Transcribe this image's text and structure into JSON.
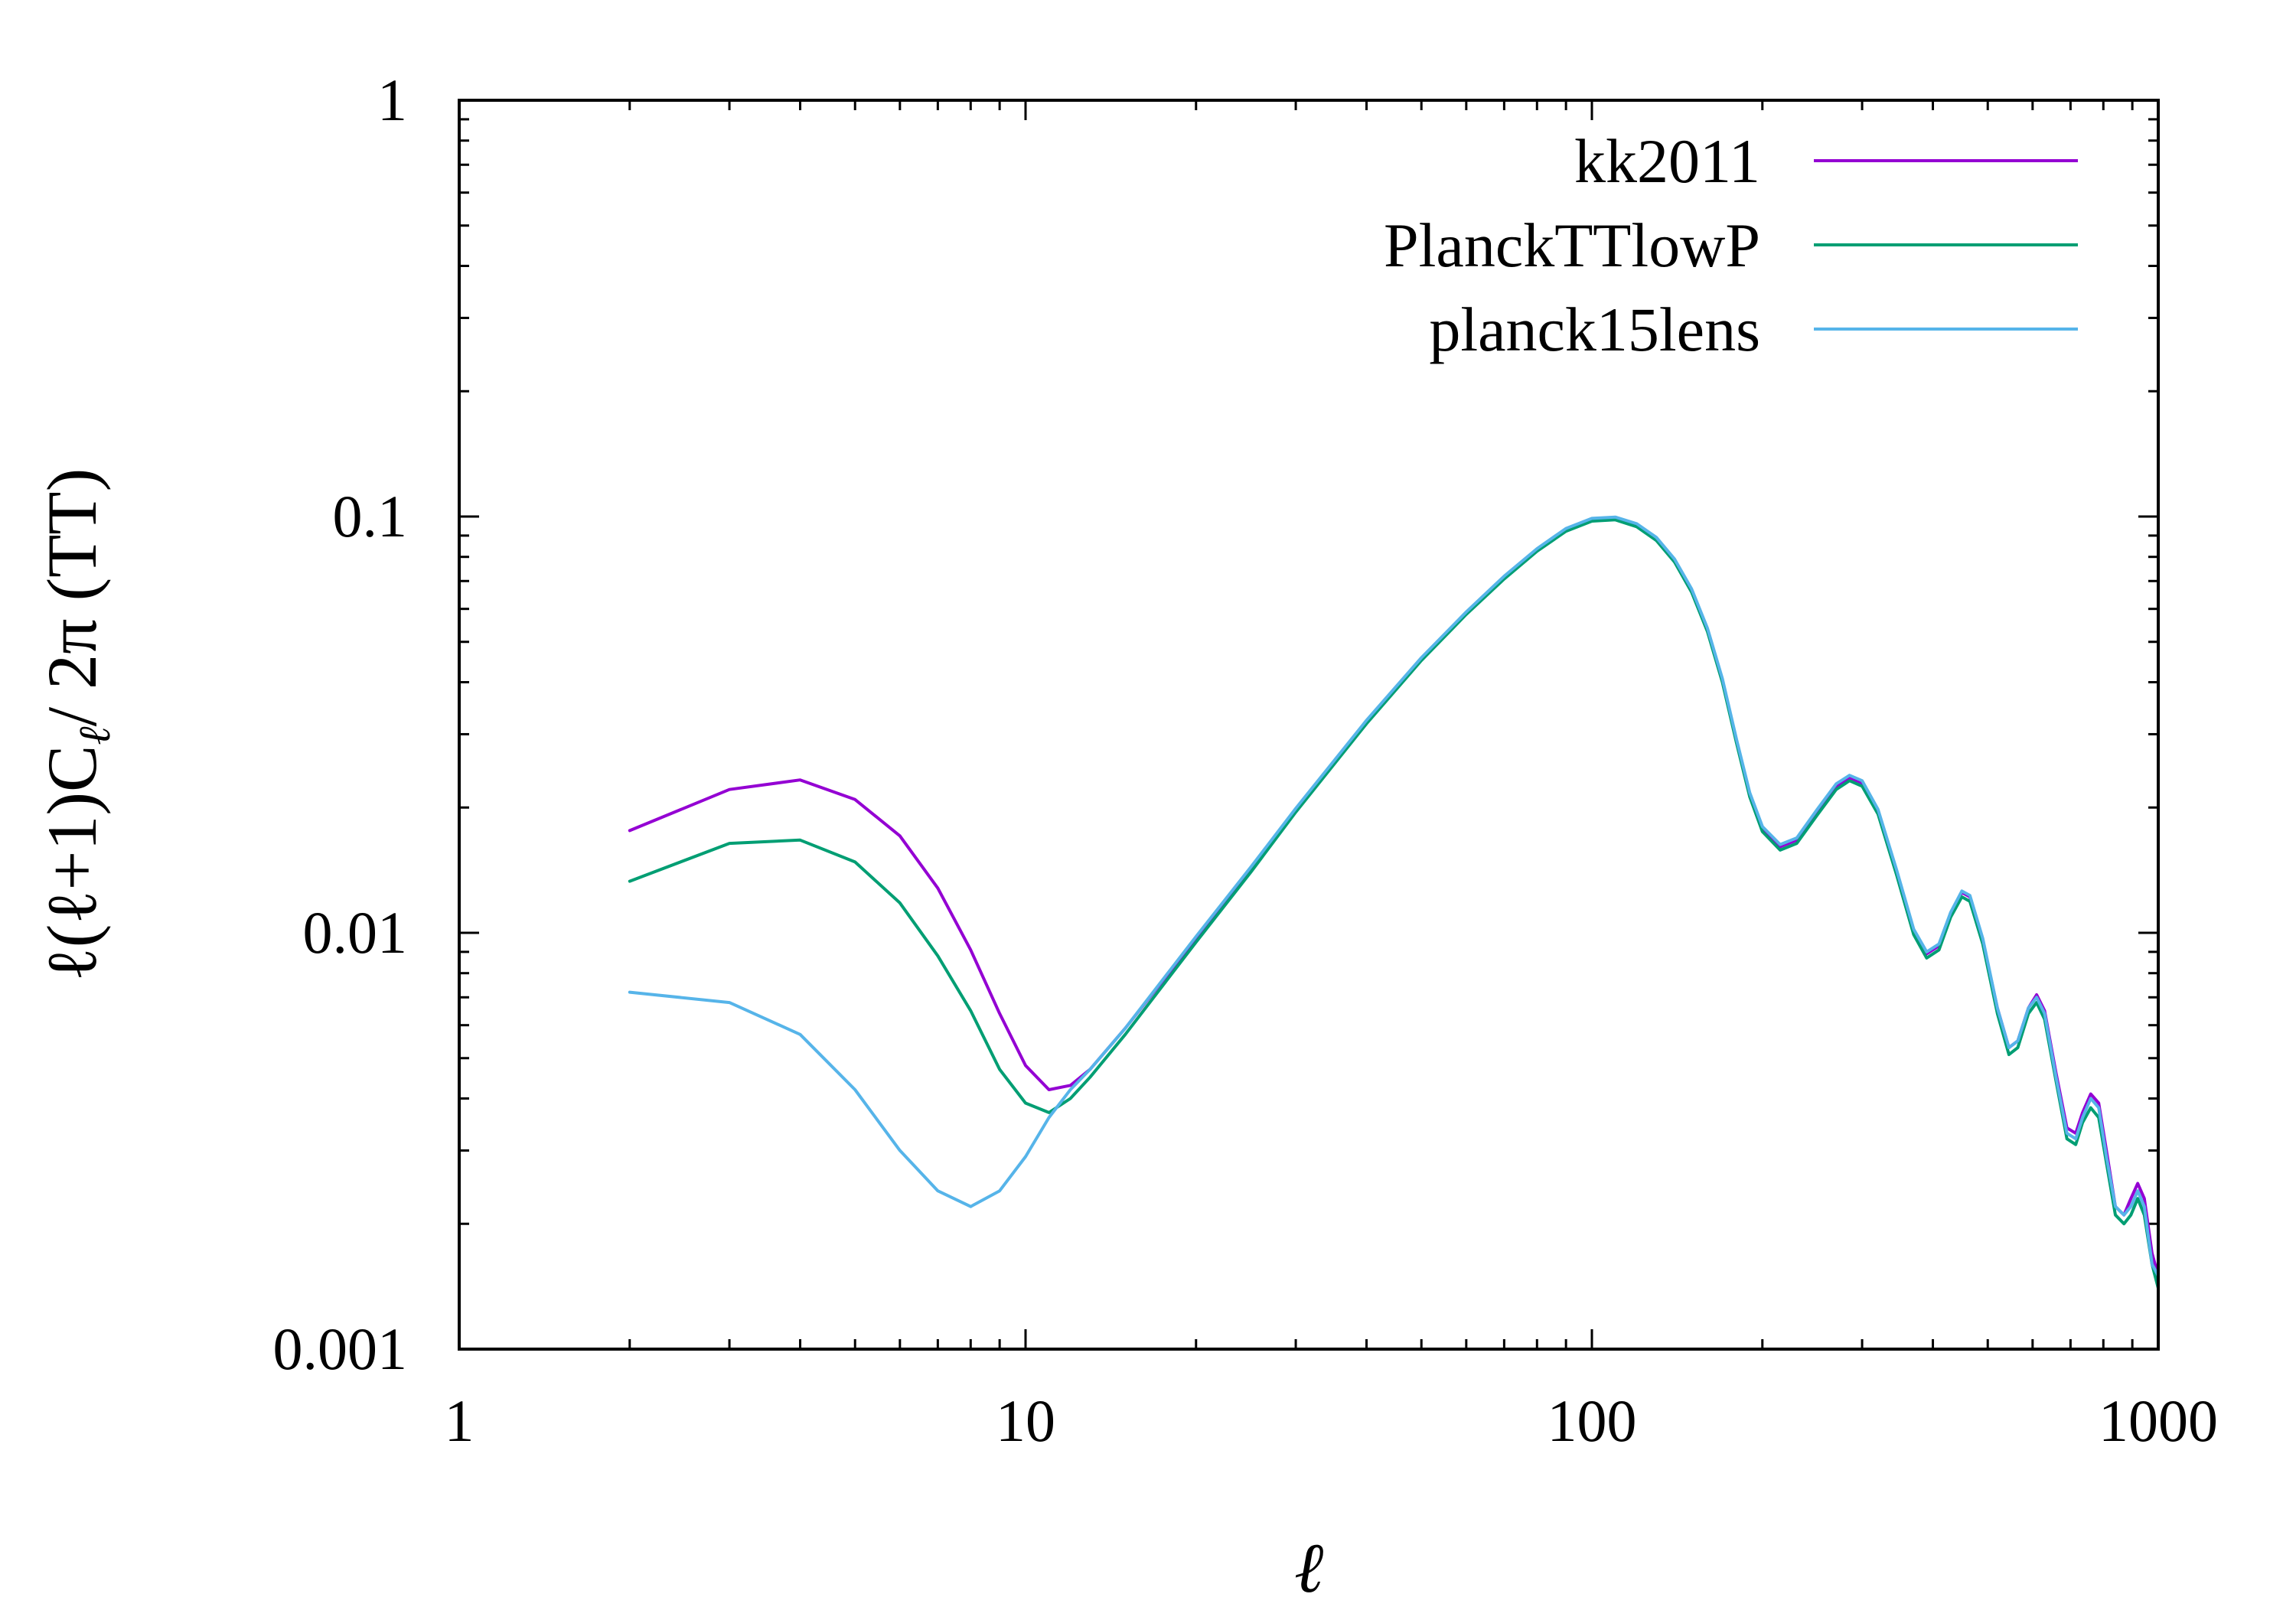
{
  "chart_data": {
    "type": "line",
    "xlabel": "ℓ",
    "ylabel": "ℓ(ℓ+1)Cℓ/ 2π (TT)",
    "ylabel_parts": [
      "ℓ(ℓ+1)C",
      "ℓ",
      "/ 2π (TT)"
    ],
    "xscale": "log",
    "yscale": "log",
    "xlim": [
      1,
      1000
    ],
    "ylim": [
      0.001,
      1
    ],
    "x_ticks": [
      {
        "value": 1,
        "label": "1"
      },
      {
        "value": 10,
        "label": "10"
      },
      {
        "value": 100,
        "label": "100"
      },
      {
        "value": 1000,
        "label": "1000"
      }
    ],
    "y_ticks": [
      {
        "value": 0.001,
        "label": "0.001"
      },
      {
        "value": 0.01,
        "label": "0.01"
      },
      {
        "value": 0.1,
        "label": "0.1"
      },
      {
        "value": 1,
        "label": "1"
      }
    ],
    "grid": false,
    "legend_position": "top-right",
    "series": [
      {
        "name": "kk2011",
        "color": "#9400d3",
        "points": [
          [
            2,
            0.0176
          ],
          [
            3,
            0.0221
          ],
          [
            4,
            0.0233
          ],
          [
            5,
            0.0209
          ],
          [
            6,
            0.0171
          ],
          [
            7,
            0.0128
          ],
          [
            8,
            0.0091
          ],
          [
            9,
            0.0064
          ],
          [
            10,
            0.0048
          ],
          [
            11,
            0.0042
          ],
          [
            12,
            0.0043
          ],
          [
            13,
            0.0047
          ],
          [
            15,
            0.0059
          ],
          [
            20,
            0.0097
          ],
          [
            25,
            0.0143
          ],
          [
            30,
            0.0198
          ],
          [
            40,
            0.0322
          ],
          [
            50,
            0.0456
          ],
          [
            60,
            0.0588
          ],
          [
            70,
            0.0716
          ],
          [
            80,
            0.0834
          ],
          [
            90,
            0.0932
          ],
          [
            100,
            0.0985
          ],
          [
            110,
            0.0992
          ],
          [
            120,
            0.0955
          ],
          [
            130,
            0.0885
          ],
          [
            140,
            0.0785
          ],
          [
            150,
            0.0665
          ],
          [
            160,
            0.0535
          ],
          [
            170,
            0.0405
          ],
          [
            180,
            0.029
          ],
          [
            190,
            0.0215
          ],
          [
            200,
            0.0178
          ],
          [
            215,
            0.0161
          ],
          [
            230,
            0.0167
          ],
          [
            250,
            0.0195
          ],
          [
            270,
            0.0225
          ],
          [
            285,
            0.0236
          ],
          [
            300,
            0.0229
          ],
          [
            320,
            0.0196
          ],
          [
            345,
            0.0141
          ],
          [
            370,
            0.0101
          ],
          [
            390,
            0.0089
          ],
          [
            410,
            0.0093
          ],
          [
            430,
            0.0111
          ],
          [
            450,
            0.0125
          ],
          [
            465,
            0.0122
          ],
          [
            490,
            0.0096
          ],
          [
            520,
            0.0066
          ],
          [
            545,
            0.0053
          ],
          [
            565,
            0.0055
          ],
          [
            590,
            0.0066
          ],
          [
            610,
            0.0071
          ],
          [
            630,
            0.0065
          ],
          [
            660,
            0.0046
          ],
          [
            690,
            0.0034
          ],
          [
            715,
            0.0033
          ],
          [
            735,
            0.0037
          ],
          [
            760,
            0.0041
          ],
          [
            785,
            0.0039
          ],
          [
            810,
            0.003
          ],
          [
            840,
            0.0022
          ],
          [
            870,
            0.0021
          ],
          [
            895,
            0.0023
          ],
          [
            920,
            0.0025
          ],
          [
            945,
            0.0023
          ],
          [
            975,
            0.0017
          ],
          [
            1000,
            0.0015
          ]
        ]
      },
      {
        "name": "PlanckTTlowP",
        "color": "#009e73",
        "points": [
          [
            2,
            0.0133
          ],
          [
            3,
            0.0164
          ],
          [
            4,
            0.0167
          ],
          [
            5,
            0.0148
          ],
          [
            6,
            0.0118
          ],
          [
            7,
            0.0088
          ],
          [
            8,
            0.0065
          ],
          [
            9,
            0.0047
          ],
          [
            10,
            0.0039
          ],
          [
            11,
            0.0037
          ],
          [
            12,
            0.004
          ],
          [
            13,
            0.0045
          ],
          [
            15,
            0.0057
          ],
          [
            20,
            0.0095
          ],
          [
            25,
            0.014
          ],
          [
            30,
            0.0195
          ],
          [
            40,
            0.0318
          ],
          [
            50,
            0.0451
          ],
          [
            60,
            0.0582
          ],
          [
            70,
            0.0708
          ],
          [
            80,
            0.0825
          ],
          [
            90,
            0.0922
          ],
          [
            100,
            0.0975
          ],
          [
            110,
            0.0982
          ],
          [
            120,
            0.0945
          ],
          [
            130,
            0.0876
          ],
          [
            140,
            0.0777
          ],
          [
            150,
            0.0658
          ],
          [
            160,
            0.0529
          ],
          [
            170,
            0.04
          ],
          [
            180,
            0.0286
          ],
          [
            190,
            0.0212
          ],
          [
            200,
            0.0175
          ],
          [
            215,
            0.0158
          ],
          [
            230,
            0.0164
          ],
          [
            250,
            0.0192
          ],
          [
            270,
            0.0221
          ],
          [
            285,
            0.0232
          ],
          [
            300,
            0.0225
          ],
          [
            320,
            0.0193
          ],
          [
            345,
            0.0138
          ],
          [
            370,
            0.0099
          ],
          [
            390,
            0.0087
          ],
          [
            410,
            0.0091
          ],
          [
            430,
            0.0109
          ],
          [
            450,
            0.0122
          ],
          [
            465,
            0.0119
          ],
          [
            490,
            0.0094
          ],
          [
            520,
            0.0064
          ],
          [
            545,
            0.0051
          ],
          [
            565,
            0.0053
          ],
          [
            590,
            0.0064
          ],
          [
            610,
            0.0068
          ],
          [
            630,
            0.0062
          ],
          [
            660,
            0.0044
          ],
          [
            690,
            0.0032
          ],
          [
            715,
            0.0031
          ],
          [
            735,
            0.0035
          ],
          [
            760,
            0.0038
          ],
          [
            785,
            0.0036
          ],
          [
            810,
            0.0028
          ],
          [
            840,
            0.0021
          ],
          [
            870,
            0.002
          ],
          [
            895,
            0.0021
          ],
          [
            920,
            0.0023
          ],
          [
            945,
            0.0021
          ],
          [
            975,
            0.0016
          ],
          [
            1000,
            0.0014
          ]
        ]
      },
      {
        "name": "planck15lens",
        "color": "#56b4e9",
        "points": [
          [
            2,
            0.0072
          ],
          [
            3,
            0.0068
          ],
          [
            4,
            0.0057
          ],
          [
            5,
            0.0042
          ],
          [
            6,
            0.003
          ],
          [
            7,
            0.0024
          ],
          [
            8,
            0.0022
          ],
          [
            9,
            0.0024
          ],
          [
            10,
            0.0029
          ],
          [
            11,
            0.0036
          ],
          [
            12,
            0.0042
          ],
          [
            13,
            0.0047
          ],
          [
            15,
            0.0059
          ],
          [
            20,
            0.0098
          ],
          [
            25,
            0.0144
          ],
          [
            30,
            0.0199
          ],
          [
            40,
            0.0324
          ],
          [
            50,
            0.0458
          ],
          [
            60,
            0.059
          ],
          [
            70,
            0.0719
          ],
          [
            80,
            0.0837
          ],
          [
            90,
            0.0936
          ],
          [
            100,
            0.099
          ],
          [
            110,
            0.0997
          ],
          [
            120,
            0.0961
          ],
          [
            130,
            0.0891
          ],
          [
            140,
            0.079
          ],
          [
            150,
            0.067
          ],
          [
            160,
            0.0539
          ],
          [
            170,
            0.0408
          ],
          [
            180,
            0.0292
          ],
          [
            190,
            0.0217
          ],
          [
            200,
            0.018
          ],
          [
            215,
            0.0163
          ],
          [
            230,
            0.0169
          ],
          [
            250,
            0.0198
          ],
          [
            270,
            0.0228
          ],
          [
            285,
            0.0239
          ],
          [
            300,
            0.0232
          ],
          [
            320,
            0.0198
          ],
          [
            345,
            0.0142
          ],
          [
            370,
            0.0102
          ],
          [
            390,
            0.009
          ],
          [
            410,
            0.0094
          ],
          [
            430,
            0.0112
          ],
          [
            450,
            0.0126
          ],
          [
            465,
            0.0123
          ],
          [
            490,
            0.0097
          ],
          [
            520,
            0.0066
          ],
          [
            545,
            0.0053
          ],
          [
            565,
            0.0055
          ],
          [
            590,
            0.0066
          ],
          [
            610,
            0.007
          ],
          [
            630,
            0.0064
          ],
          [
            660,
            0.0045
          ],
          [
            690,
            0.0033
          ],
          [
            715,
            0.0032
          ],
          [
            735,
            0.0036
          ],
          [
            760,
            0.004
          ],
          [
            785,
            0.0038
          ],
          [
            810,
            0.0029
          ],
          [
            840,
            0.0022
          ],
          [
            870,
            0.0021
          ],
          [
            895,
            0.0022
          ],
          [
            920,
            0.0024
          ],
          [
            945,
            0.0022
          ],
          [
            975,
            0.0016
          ],
          [
            1000,
            0.0015
          ]
        ]
      }
    ]
  }
}
